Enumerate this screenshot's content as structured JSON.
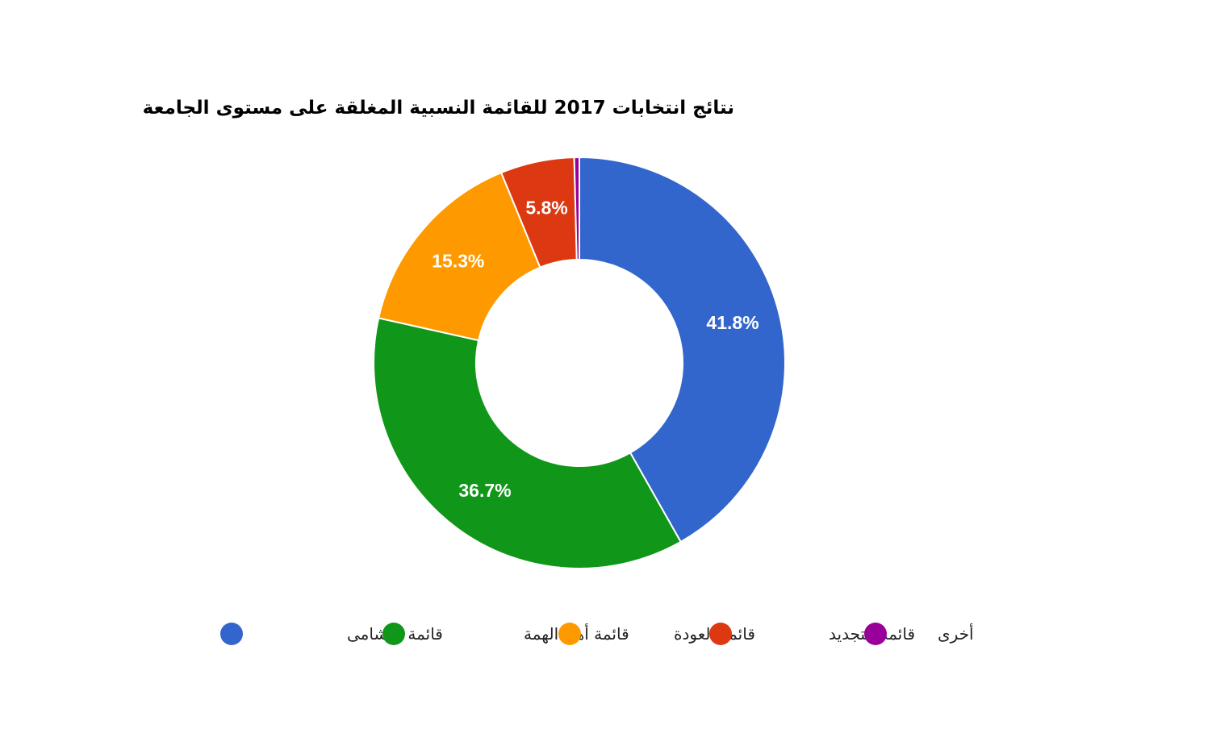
{
  "chart_data": {
    "type": "pie",
    "title": "نتائج انتخابات 2017 للقائمة النسبية المغلقة على مستوى الجامعة",
    "categories": [
      "قائمة النشامى",
      "قائمة أهل الهمة",
      "قائمة العودة",
      "قائمة التجديد",
      "أخرى"
    ],
    "values": [
      41.8,
      36.7,
      15.3,
      5.8,
      0.4
    ],
    "data_labels": [
      "41.8%",
      "36.7%",
      "15.3%",
      "5.8%",
      ""
    ],
    "colors": [
      "#3366cc",
      "#109618",
      "#ff9900",
      "#dc3912",
      "#990099"
    ],
    "donut": true,
    "legend_position": "bottom"
  }
}
